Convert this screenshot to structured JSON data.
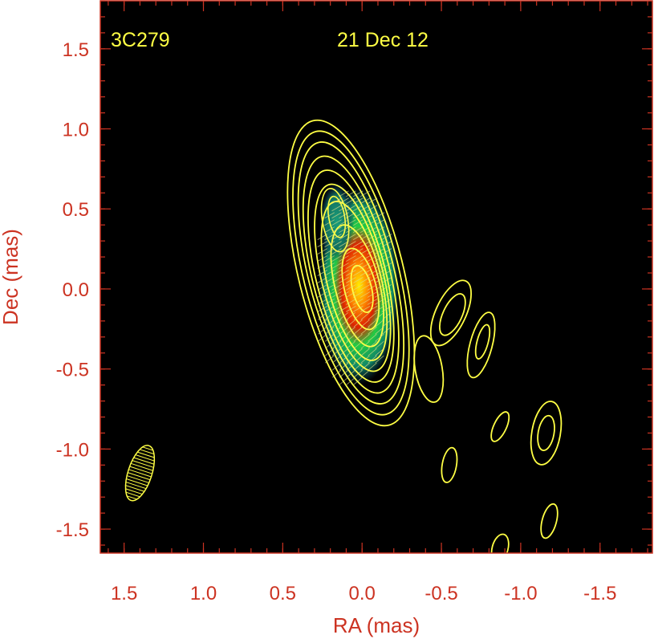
{
  "chart_data": {
    "type": "contour",
    "source_label": "3C279",
    "epoch_label": "21 Dec 12",
    "xlabel": "RA (mas)",
    "ylabel": "Dec (mas)",
    "xlim": [
      1.65,
      -1.83
    ],
    "ylim": [
      -1.65,
      1.8
    ],
    "x_axis_reversed": true,
    "x_ticks": [
      1.5,
      1.0,
      0.5,
      0.0,
      -0.5,
      -1.0,
      -1.5
    ],
    "x_tick_labels": [
      "1.5",
      "1.0",
      "0.5",
      "0.0",
      "-0.5",
      "-1.0",
      "-1.5"
    ],
    "y_ticks": [
      1.5,
      1.0,
      0.5,
      0.0,
      -0.5,
      -1.0,
      -1.5
    ],
    "y_tick_labels": [
      "1.5",
      "1.0",
      "0.5",
      "0.0",
      "-0.5",
      "-1.0",
      "-1.5"
    ],
    "grid": false,
    "background_color": "#000000",
    "frame_color": "#cc3322",
    "label_color": "#cc3322",
    "contour_color": "#ffff44",
    "text_color": "#ffff44",
    "core_position": [
      0.0,
      0.0
    ],
    "core_contours": {
      "count": 10,
      "levels": [
        {
          "cx": 0.07,
          "cy": 0.1,
          "rx": 0.33,
          "ry": 0.98
        },
        {
          "cx": 0.07,
          "cy": 0.1,
          "rx": 0.3,
          "ry": 0.91
        },
        {
          "cx": 0.07,
          "cy": 0.1,
          "rx": 0.27,
          "ry": 0.84
        },
        {
          "cx": 0.07,
          "cy": 0.09,
          "rx": 0.245,
          "ry": 0.76
        },
        {
          "cx": 0.07,
          "cy": 0.08,
          "rx": 0.22,
          "ry": 0.68
        },
        {
          "cx": 0.06,
          "cy": 0.07,
          "rx": 0.195,
          "ry": 0.6
        },
        {
          "cx": 0.05,
          "cy": 0.05,
          "rx": 0.17,
          "ry": 0.51
        },
        {
          "cx": 0.03,
          "cy": 0.02,
          "rx": 0.14,
          "ry": 0.39
        },
        {
          "cx": 0.01,
          "cy": 0.0,
          "rx": 0.1,
          "ry": 0.26
        },
        {
          "cx": 0.0,
          "cy": 0.0,
          "rx": 0.06,
          "ry": 0.15
        }
      ]
    },
    "knot_contours": [
      {
        "cx": 0.17,
        "cy": 0.43,
        "rx": 0.08,
        "ry": 0.2
      },
      {
        "cx": 0.16,
        "cy": 0.45,
        "rx": 0.05,
        "ry": 0.13
      }
    ],
    "jet_contours": [
      {
        "cx": -0.42,
        "cy": -0.5,
        "rx": 0.085,
        "ry": 0.21,
        "angle": -10
      },
      {
        "cx": -0.56,
        "cy": -0.15,
        "rx": 0.095,
        "ry": 0.22,
        "angle": 25
      },
      {
        "cx": -0.57,
        "cy": -0.16,
        "rx": 0.06,
        "ry": 0.14,
        "angle": 25
      },
      {
        "cx": -0.75,
        "cy": -0.35,
        "rx": 0.07,
        "ry": 0.21,
        "angle": 15
      },
      {
        "cx": -0.76,
        "cy": -0.33,
        "rx": 0.035,
        "ry": 0.11,
        "angle": 15
      },
      {
        "cx": -0.55,
        "cy": -1.1,
        "rx": 0.045,
        "ry": 0.11,
        "angle": 10
      },
      {
        "cx": -0.87,
        "cy": -0.86,
        "rx": 0.04,
        "ry": 0.1,
        "angle": 25
      },
      {
        "cx": -1.16,
        "cy": -0.9,
        "rx": 0.09,
        "ry": 0.2,
        "angle": 10
      },
      {
        "cx": -1.16,
        "cy": -0.9,
        "rx": 0.05,
        "ry": 0.11,
        "angle": 10
      },
      {
        "cx": -1.18,
        "cy": -1.45,
        "rx": 0.045,
        "ry": 0.11,
        "angle": 15
      },
      {
        "cx": -0.87,
        "cy": -1.62,
        "rx": 0.05,
        "ry": 0.09,
        "angle": 15
      }
    ],
    "beam": {
      "cx": 1.4,
      "cy": -1.15,
      "rx": 0.075,
      "ry": 0.18,
      "angle": 18
    },
    "polarization_ticks": true
  }
}
